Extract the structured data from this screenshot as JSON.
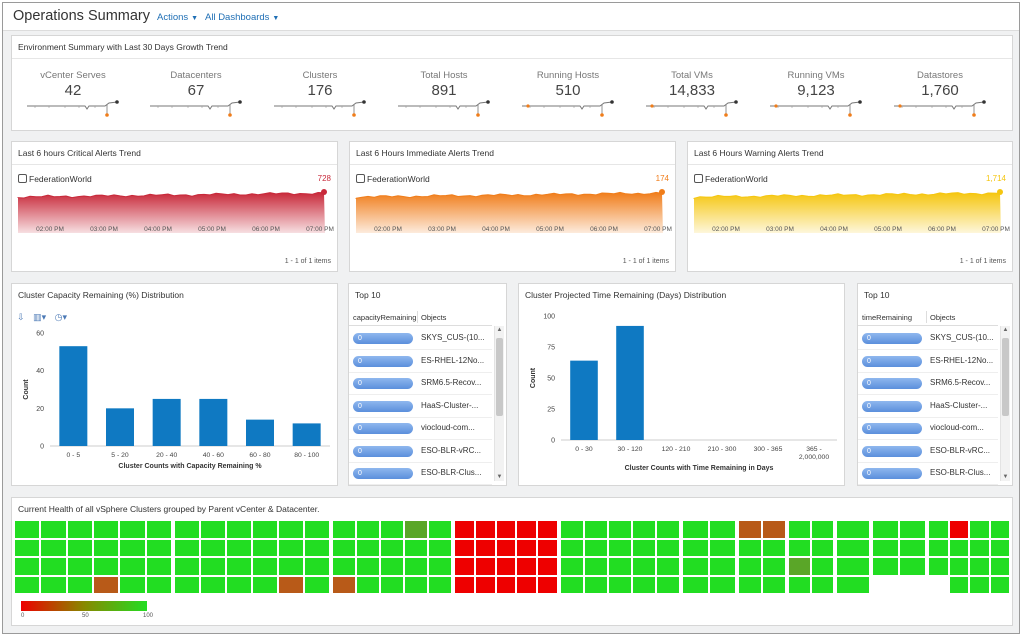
{
  "header": {
    "title": "Operations Summary",
    "actions_label": "Actions",
    "dashboards_label": "All Dashboards"
  },
  "environment": {
    "title": "Environment Summary with Last 30 Days Growth Trend",
    "kpis": [
      {
        "label": "vCenter Serves",
        "value": "42"
      },
      {
        "label": "Datacenters",
        "value": "67"
      },
      {
        "label": "Clusters",
        "value": "176"
      },
      {
        "label": "Total Hosts",
        "value": "891"
      },
      {
        "label": "Running Hosts",
        "value": "510"
      },
      {
        "label": "Total VMs",
        "value": "14,833"
      },
      {
        "label": "Running VMs",
        "value": "9,123"
      },
      {
        "label": "Datastores",
        "value": "1,760"
      }
    ]
  },
  "alerts": [
    {
      "title": "Last 6 hours Critical Alerts Trend",
      "object": "FederationWorld",
      "value": "728",
      "color": "#c8293a",
      "count_text": "1 - 1 of 1 items"
    },
    {
      "title": "Last 6 Hours Immediate Alerts Trend",
      "object": "FederationWorld",
      "value": "174",
      "color": "#f07d1a",
      "count_text": "1 - 1 of 1 items"
    },
    {
      "title": "Last 6 Hours Warning Alerts Trend",
      "object": "FederationWorld",
      "value": "1,714",
      "color": "#f5c60f",
      "count_text": "1 - 1 of 1 items"
    }
  ],
  "alert_time_ticks": [
    "02:00 PM",
    "03:00 PM",
    "04:00 PM",
    "05:00 PM",
    "06:00 PM",
    "07:00 PM"
  ],
  "capacity_chart": {
    "title": "Cluster Capacity Remaining (%) Distribution",
    "chart_data": {
      "type": "bar",
      "categories": [
        "0 - 5",
        "5 - 20",
        "20 - 40",
        "40 - 60",
        "60 - 80",
        "80 - 100"
      ],
      "values": [
        53,
        20,
        25,
        25,
        14,
        12
      ],
      "ylabel": "Count",
      "xlabel": "Cluster Counts with Capacity Remaining %",
      "ylim": [
        0,
        60
      ],
      "yticks": [
        "0",
        "20",
        "40",
        "60"
      ]
    }
  },
  "top10_capacity": {
    "title": "Top 10",
    "col1": "capacityRemaining",
    "col2": "Objects",
    "rows": [
      {
        "value": "0",
        "object": "SKYS_CUS-(10..."
      },
      {
        "value": "0",
        "object": "ES-RHEL-12No..."
      },
      {
        "value": "0",
        "object": "SRM6.5-Recov..."
      },
      {
        "value": "0",
        "object": "HaaS-Cluster-..."
      },
      {
        "value": "0",
        "object": "viocloud-com..."
      },
      {
        "value": "0",
        "object": "ESO-BLR-vRC..."
      },
      {
        "value": "0",
        "object": "ESO-BLR-Clus..."
      }
    ]
  },
  "time_chart": {
    "title": "Cluster Projected Time Remaining (Days) Distribution",
    "chart_data": {
      "type": "bar",
      "categories": [
        "0 - 30",
        "30 - 120",
        "120 - 210",
        "210 - 300",
        "300 - 365",
        "365 -\n2,000,000"
      ],
      "values": [
        64,
        92,
        0,
        0,
        0,
        0
      ],
      "ylabel": "Count",
      "xlabel": "Cluster Counts with Time Remaining in Days",
      "ylim": [
        0,
        100
      ],
      "yticks": [
        "0",
        "25",
        "50",
        "75",
        "100"
      ]
    }
  },
  "top10_time": {
    "title": "Top 10",
    "col1": "timeRemaining",
    "col2": "Objects",
    "rows": [
      {
        "value": "0",
        "object": "SKYS_CUS-(10..."
      },
      {
        "value": "0",
        "object": "ES-RHEL-12No..."
      },
      {
        "value": "0",
        "object": "SRM6.5-Recov..."
      },
      {
        "value": "0",
        "object": "HaaS-Cluster-..."
      },
      {
        "value": "0",
        "object": "viocloud-com..."
      },
      {
        "value": "0",
        "object": "ESO-BLR-vRC..."
      },
      {
        "value": "0",
        "object": "ESO-BLR-Clus..."
      }
    ]
  },
  "health": {
    "title": "Current Health of all vSphere Clusters grouped by Parent vCenter & Datacenter.",
    "legend_ticks": [
      "0",
      "50",
      "100"
    ],
    "colors": {
      "good": "#22dd22",
      "bad": "#ee0000",
      "mid": "#b85a18",
      "olive": "#5aa628"
    }
  }
}
